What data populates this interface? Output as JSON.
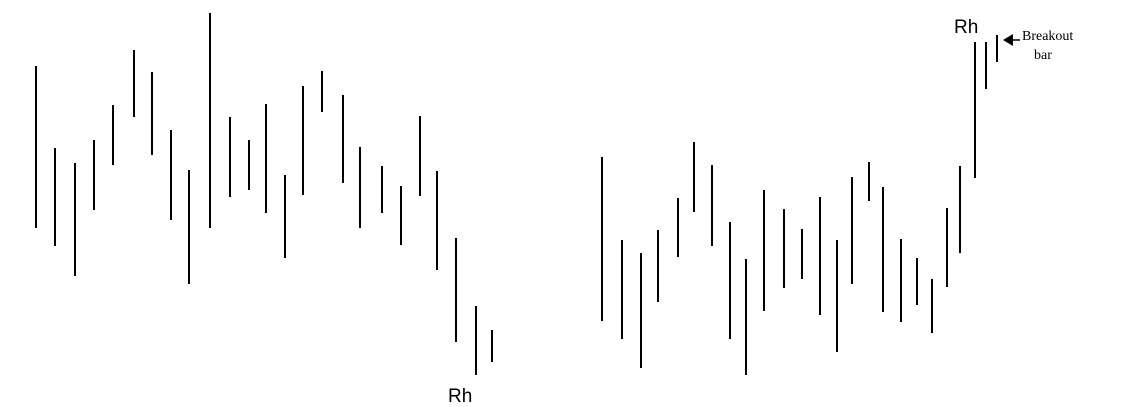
{
  "labels": {
    "rh_bottom": "Rh",
    "rh_top": "Rh",
    "breakout_line1": "Breakout",
    "breakout_line2": "bar"
  },
  "colors": {
    "bars": "#000000",
    "background": "#ffffff"
  },
  "icons": {
    "breakout_pointer": "left-arrow-icon"
  }
}
